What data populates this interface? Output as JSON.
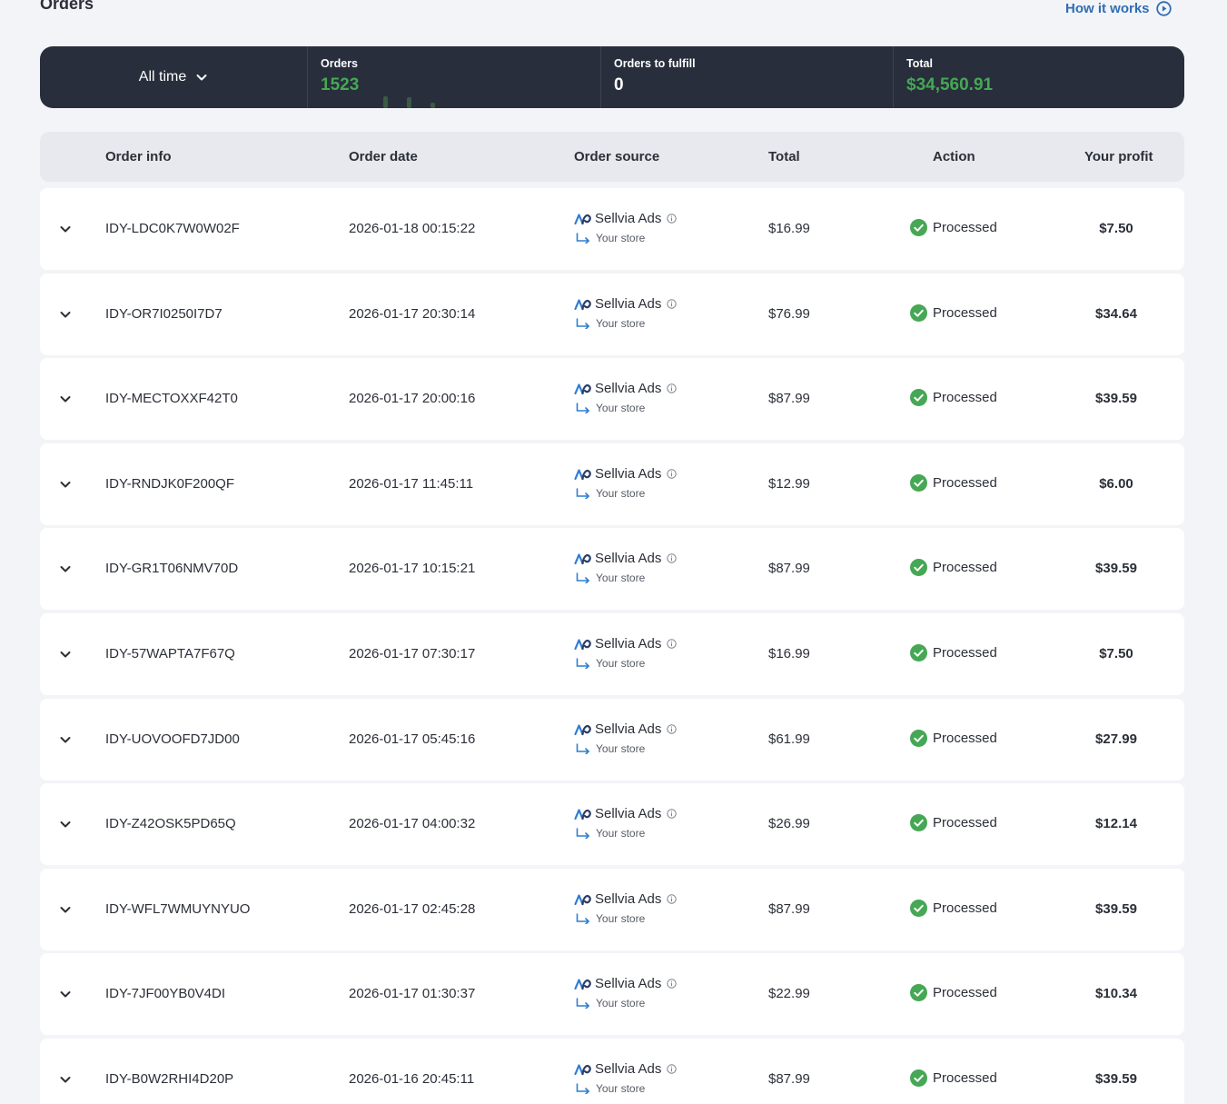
{
  "header": {
    "title": "Orders",
    "how_it_works": "How it works"
  },
  "stats": {
    "period": "All time",
    "orders_label": "Orders",
    "orders_value": "1523",
    "fulfill_label": "Orders to fulfill",
    "fulfill_value": "0",
    "total_label": "Total",
    "total_value": "$34,560.91"
  },
  "columns": {
    "order_info": "Order info",
    "order_date": "Order date",
    "order_source": "Order source",
    "total": "Total",
    "action": "Action",
    "profit": "Your profit"
  },
  "colors": {
    "accent_green": "#46a755",
    "link_blue": "#2f6db5",
    "bar_dark": "#282e3c"
  },
  "orders": [
    {
      "id": "IDY-LDC0K7W0W02F",
      "date": "2026-01-18 00:15:22",
      "source": "Sellvia Ads",
      "store": "Your store",
      "total": "$16.99",
      "status": "Processed",
      "profit": "$7.50"
    },
    {
      "id": "IDY-OR7I0250I7D7",
      "date": "2026-01-17 20:30:14",
      "source": "Sellvia Ads",
      "store": "Your store",
      "total": "$76.99",
      "status": "Processed",
      "profit": "$34.64"
    },
    {
      "id": "IDY-MECTOXXF42T0",
      "date": "2026-01-17 20:00:16",
      "source": "Sellvia Ads",
      "store": "Your store",
      "total": "$87.99",
      "status": "Processed",
      "profit": "$39.59"
    },
    {
      "id": "IDY-RNDJK0F200QF",
      "date": "2026-01-17 11:45:11",
      "source": "Sellvia Ads",
      "store": "Your store",
      "total": "$12.99",
      "status": "Processed",
      "profit": "$6.00"
    },
    {
      "id": "IDY-GR1T06NMV70D",
      "date": "2026-01-17 10:15:21",
      "source": "Sellvia Ads",
      "store": "Your store",
      "total": "$87.99",
      "status": "Processed",
      "profit": "$39.59"
    },
    {
      "id": "IDY-57WAPTA7F67Q",
      "date": "2026-01-17 07:30:17",
      "source": "Sellvia Ads",
      "store": "Your store",
      "total": "$16.99",
      "status": "Processed",
      "profit": "$7.50"
    },
    {
      "id": "IDY-UOVOOFD7JD00",
      "date": "2026-01-17 05:45:16",
      "source": "Sellvia Ads",
      "store": "Your store",
      "total": "$61.99",
      "status": "Processed",
      "profit": "$27.99"
    },
    {
      "id": "IDY-Z42OSK5PD65Q",
      "date": "2026-01-17 04:00:32",
      "source": "Sellvia Ads",
      "store": "Your store",
      "total": "$26.99",
      "status": "Processed",
      "profit": "$12.14"
    },
    {
      "id": "IDY-WFL7WMUYNYUO",
      "date": "2026-01-17 02:45:28",
      "source": "Sellvia Ads",
      "store": "Your store",
      "total": "$87.99",
      "status": "Processed",
      "profit": "$39.59"
    },
    {
      "id": "IDY-7JF00YB0V4DI",
      "date": "2026-01-17 01:30:37",
      "source": "Sellvia Ads",
      "store": "Your store",
      "total": "$22.99",
      "status": "Processed",
      "profit": "$10.34"
    },
    {
      "id": "IDY-B0W2RHI4D20P",
      "date": "2026-01-16 20:45:11",
      "source": "Sellvia Ads",
      "store": "Your store",
      "total": "$87.99",
      "status": "Processed",
      "profit": "$39.59"
    }
  ]
}
